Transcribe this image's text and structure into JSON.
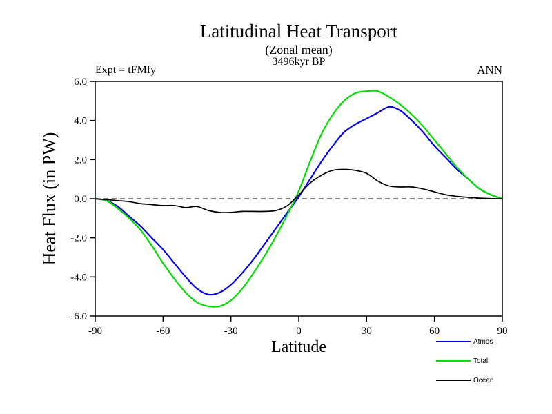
{
  "annotations": {
    "expt": "Expt = tFMfy",
    "time": "3496kyr BP",
    "season": "ANN"
  },
  "chart_data": {
    "type": "line",
    "title": "Latitudinal Heat Transport",
    "subtitle": "(Zonal mean)",
    "xlabel": "Latitude",
    "ylabel": "Heat Flux (in PW)",
    "xlim": [
      -90,
      90
    ],
    "ylim": [
      -6.0,
      6.0
    ],
    "x_ticks": [
      -90,
      -60,
      -30,
      0,
      30,
      60,
      90
    ],
    "x_tick_labels": [
      "-90",
      "-60",
      "-30",
      "0",
      "30",
      "60",
      "90"
    ],
    "y_ticks": [
      -6.0,
      -4.0,
      -2.0,
      0.0,
      2.0,
      4.0,
      6.0
    ],
    "y_tick_labels": [
      "-6.0",
      "-4.0",
      "-2.0",
      "0.0",
      "2.0",
      "4.0",
      "6.0"
    ],
    "grid": false,
    "zero_line": "dashed",
    "legend_position": "bottom-right-below-axis",
    "x": [
      -90,
      -85,
      -80,
      -75,
      -70,
      -65,
      -60,
      -55,
      -50,
      -45,
      -40,
      -35,
      -30,
      -25,
      -20,
      -15,
      -10,
      -5,
      0,
      5,
      10,
      15,
      20,
      25,
      30,
      35,
      40,
      45,
      50,
      55,
      60,
      65,
      70,
      75,
      80,
      85,
      90
    ],
    "series": [
      {
        "name": "Atmos",
        "color": "#0000ee",
        "values": [
          0.0,
          -0.1,
          -0.4,
          -0.9,
          -1.4,
          -2.0,
          -2.6,
          -3.3,
          -4.0,
          -4.6,
          -4.9,
          -4.8,
          -4.4,
          -3.8,
          -3.1,
          -2.3,
          -1.5,
          -0.7,
          0.1,
          1.0,
          1.9,
          2.7,
          3.4,
          3.8,
          4.1,
          4.4,
          4.7,
          4.5,
          4.0,
          3.4,
          2.7,
          2.1,
          1.5,
          1.0,
          0.5,
          0.2,
          0.0
        ]
      },
      {
        "name": "Total",
        "color": "#00dd00",
        "values": [
          0.0,
          -0.1,
          -0.5,
          -1.0,
          -1.6,
          -2.4,
          -3.3,
          -4.1,
          -4.8,
          -5.3,
          -5.5,
          -5.5,
          -5.2,
          -4.6,
          -3.8,
          -2.9,
          -1.9,
          -0.8,
          0.4,
          1.9,
          3.3,
          4.3,
          5.0,
          5.4,
          5.5,
          5.5,
          5.2,
          4.8,
          4.3,
          3.7,
          3.0,
          2.3,
          1.6,
          1.0,
          0.5,
          0.2,
          0.0
        ]
      },
      {
        "name": "Ocean",
        "color": "#000000",
        "values": [
          0.0,
          -0.05,
          -0.1,
          -0.15,
          -0.25,
          -0.3,
          -0.35,
          -0.35,
          -0.45,
          -0.4,
          -0.6,
          -0.7,
          -0.7,
          -0.65,
          -0.65,
          -0.65,
          -0.6,
          -0.35,
          0.2,
          0.8,
          1.2,
          1.45,
          1.5,
          1.45,
          1.3,
          0.9,
          0.65,
          0.6,
          0.6,
          0.5,
          0.35,
          0.2,
          0.12,
          0.07,
          0.03,
          0.01,
          0.0
        ]
      }
    ]
  }
}
